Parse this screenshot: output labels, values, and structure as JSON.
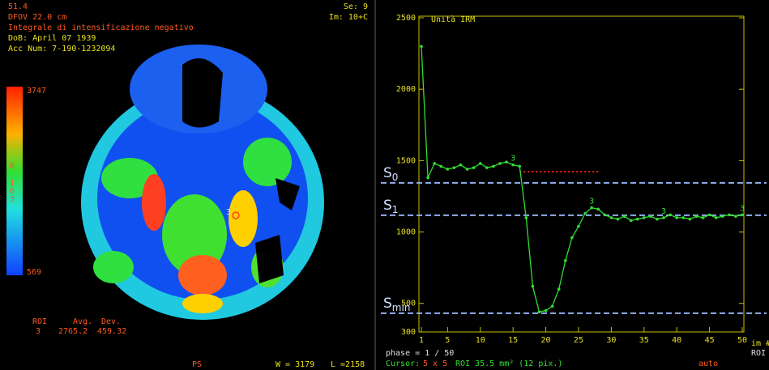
{
  "left_panel": {
    "header": [
      "51.4",
      "DFOV 22.0 cm",
      "Integrale di intensificazione negativo",
      "DoB: April 07 1939",
      "Acc Num: 7-190-1232094"
    ],
    "top_right": [
      "Se: 9",
      "Im: 10+C"
    ],
    "colorbar": {
      "max": "3747",
      "min": "569",
      "side_label": [
        "R",
        "1",
        "0",
        "3"
      ]
    },
    "marker_label": "3",
    "roi_table": {
      "headers": [
        "ROI",
        "Avg.",
        "Dev."
      ],
      "row": [
        "3",
        "2765.2",
        "459.32"
      ]
    },
    "footer": [
      "PS",
      "W = 3179",
      "L =2158"
    ]
  },
  "chart_data": {
    "type": "line",
    "y_label": "Unità IRM",
    "x": [
      1,
      2,
      3,
      4,
      5,
      6,
      7,
      8,
      9,
      10,
      11,
      12,
      13,
      14,
      15,
      16,
      17,
      18,
      19,
      20,
      21,
      22,
      23,
      24,
      25,
      26,
      27,
      28,
      29,
      30,
      31,
      32,
      33,
      34,
      35,
      36,
      37,
      38,
      39,
      40,
      41,
      42,
      43,
      44,
      45,
      46,
      47,
      48,
      49,
      50
    ],
    "values": [
      2300,
      1380,
      1480,
      1460,
      1440,
      1450,
      1470,
      1440,
      1450,
      1480,
      1450,
      1460,
      1480,
      1490,
      1470,
      1460,
      1100,
      620,
      440,
      450,
      480,
      600,
      800,
      960,
      1040,
      1130,
      1170,
      1160,
      1120,
      1100,
      1090,
      1110,
      1080,
      1090,
      1100,
      1110,
      1090,
      1100,
      1120,
      1100,
      1100,
      1090,
      1110,
      1100,
      1120,
      1100,
      1110,
      1120,
      1110,
      1120
    ],
    "color": "#30e030",
    "xlim": [
      1,
      50
    ],
    "xticks": [
      1,
      5,
      10,
      15,
      20,
      25,
      30,
      35,
      40,
      45,
      50
    ],
    "ylim": [
      300,
      2500
    ],
    "yticks": [
      300,
      500,
      1000,
      1500,
      2000,
      2500
    ],
    "point_labels": [
      {
        "x": 15,
        "label": "3"
      },
      {
        "x": 27,
        "label": "3"
      },
      {
        "x": 38,
        "label": "3"
      },
      {
        "x": 50,
        "label": "3"
      }
    ],
    "reference_lines": [
      {
        "main": "S",
        "sub": "0",
        "value": 1344
      },
      {
        "main": "S",
        "sub": "1",
        "value": 1117
      },
      {
        "main": "S",
        "sub": "min",
        "value": 431
      }
    ],
    "baseline": {
      "value": 1423,
      "x_start": 16,
      "x_end": 28,
      "color": "#ff2020"
    },
    "footer": {
      "phase": "phase =  1 / 50",
      "cursor": "Cursor:",
      "cursor_size": "5 x 5",
      "cursor_roi": "ROI 35.5 mm² (12 pix.)",
      "mode": "auto",
      "im": "im #",
      "roi": "ROI"
    }
  }
}
